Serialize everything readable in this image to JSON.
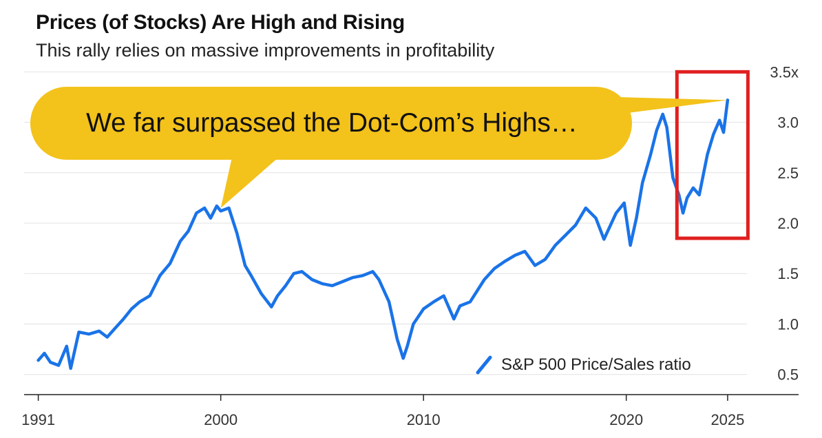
{
  "header": {
    "title": "Prices (of Stocks) Are High and Rising",
    "subtitle": "This rally relies on massive improvements in profitability"
  },
  "callout": {
    "text": "We far surpassed the Dot-Com’s Highs…",
    "fill_color": "#F3C21B"
  },
  "highlight": {
    "x_range": [
      2022.5,
      2026.0
    ],
    "y_range": [
      1.85,
      3.5
    ],
    "color": "#E02020"
  },
  "chart_data": {
    "type": "line",
    "title": "Prices (of Stocks) Are High and Rising",
    "subtitle": "This rally relies on massive improvements in profitability",
    "xlabel": "",
    "ylabel": "",
    "xlim": [
      1990.3,
      2028.5
    ],
    "ylim": [
      0.3,
      3.55
    ],
    "x_ticks": [
      1991,
      2000,
      2010,
      2020,
      2025
    ],
    "x_tick_labels": [
      "1991",
      "2000",
      "2010",
      "2020",
      "2025"
    ],
    "y_ticks": [
      0.5,
      1.0,
      1.5,
      2.0,
      2.5,
      3.0,
      3.5
    ],
    "y_tick_labels": [
      "0.5",
      "1.0",
      "1.5",
      "2.0",
      "2.5",
      "3.0",
      "3.5x"
    ],
    "grid": true,
    "legend_position": "bottom-right",
    "line_color": "#1A73E8",
    "series": [
      {
        "name": "S&P 500 Price/Sales ratio",
        "x": [
          1991.0,
          1991.3,
          1991.6,
          1992.0,
          1992.4,
          1992.6,
          1993.0,
          1993.5,
          1994.0,
          1994.4,
          1994.8,
          1995.2,
          1995.6,
          1996.0,
          1996.5,
          1997.0,
          1997.5,
          1998.0,
          1998.4,
          1998.8,
          1999.2,
          1999.5,
          1999.8,
          2000.0,
          2000.4,
          2000.8,
          2001.2,
          2001.5,
          2002.0,
          2002.5,
          2002.8,
          2003.2,
          2003.6,
          2004.0,
          2004.5,
          2005.0,
          2005.5,
          2006.0,
          2006.5,
          2007.0,
          2007.5,
          2007.8,
          2008.3,
          2008.7,
          2009.0,
          2009.2,
          2009.5,
          2010.0,
          2010.5,
          2011.0,
          2011.5,
          2011.8,
          2012.3,
          2013.0,
          2013.5,
          2014.0,
          2014.5,
          2015.0,
          2015.5,
          2016.0,
          2016.5,
          2017.0,
          2017.5,
          2018.0,
          2018.5,
          2018.9,
          2019.5,
          2019.9,
          2020.2,
          2020.5,
          2020.8,
          2021.2,
          2021.5,
          2021.8,
          2022.0,
          2022.3,
          2022.6,
          2022.8,
          2023.0,
          2023.3,
          2023.6,
          2023.8,
          2024.0,
          2024.3,
          2024.6,
          2024.8,
          2025.0
        ],
        "y": [
          0.64,
          0.71,
          0.62,
          0.59,
          0.78,
          0.56,
          0.92,
          0.9,
          0.93,
          0.87,
          0.96,
          1.05,
          1.15,
          1.22,
          1.28,
          1.48,
          1.6,
          1.82,
          1.92,
          2.1,
          2.15,
          2.05,
          2.17,
          2.12,
          2.15,
          1.9,
          1.58,
          1.48,
          1.3,
          1.17,
          1.28,
          1.38,
          1.5,
          1.52,
          1.44,
          1.4,
          1.38,
          1.42,
          1.46,
          1.48,
          1.52,
          1.44,
          1.22,
          0.85,
          0.66,
          0.78,
          1.0,
          1.15,
          1.22,
          1.28,
          1.05,
          1.18,
          1.22,
          1.44,
          1.55,
          1.62,
          1.68,
          1.72,
          1.58,
          1.64,
          1.78,
          1.88,
          1.98,
          2.15,
          2.05,
          1.84,
          2.1,
          2.2,
          1.78,
          2.05,
          2.4,
          2.68,
          2.92,
          3.08,
          2.95,
          2.45,
          2.28,
          2.1,
          2.25,
          2.35,
          2.28,
          2.48,
          2.68,
          2.88,
          3.02,
          2.9,
          3.22
        ]
      }
    ]
  }
}
